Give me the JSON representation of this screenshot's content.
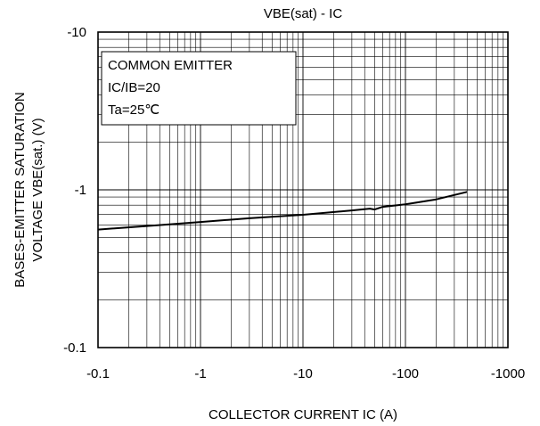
{
  "chart_data": {
    "type": "line",
    "title": "VBE(sat) - IC",
    "xlabel": "COLLECTOR CURRENT IC (A)",
    "ylabel_lines": [
      "BASES-EMITTER SATURATION",
      "VOLTAGE VBE(sat.) (V)"
    ],
    "x_scale": "log",
    "y_scale": "log",
    "xlim": [
      -0.1,
      -1000
    ],
    "ylim": [
      -0.1,
      -10
    ],
    "x_tick_labels": [
      "-0.1",
      "-1",
      "-10",
      "-100",
      "-1000"
    ],
    "x_tick_values": [
      -0.1,
      -1,
      -10,
      -100,
      -1000
    ],
    "y_tick_labels": [
      "-0.1",
      "-1",
      "-10"
    ],
    "y_tick_values": [
      -0.1,
      -1,
      -10
    ],
    "grid": true,
    "legend_lines": [
      "COMMON EMITTER",
      "IC/IB=20",
      "Ta=25℃"
    ],
    "legend_placement": "top-left",
    "series": [
      {
        "x": [
          -0.1,
          -0.3,
          -1,
          -3,
          -10,
          -30,
          -45,
          -50,
          -60,
          -100,
          -200,
          -400
        ],
        "y": [
          -0.56,
          -0.59,
          -0.625,
          -0.66,
          -0.695,
          -0.74,
          -0.76,
          -0.75,
          -0.78,
          -0.81,
          -0.87,
          -0.97
        ]
      }
    ]
  }
}
